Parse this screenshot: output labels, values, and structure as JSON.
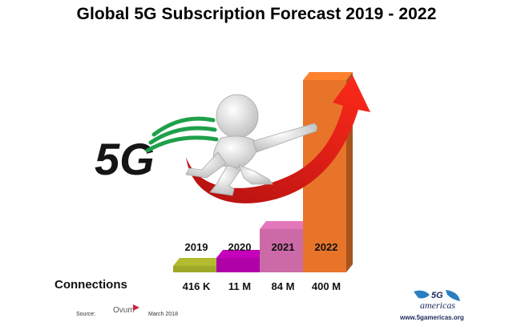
{
  "title": "Global 5G Subscription Forecast 2019 - 2022",
  "row_label": "Connections",
  "source": {
    "label": "Source:",
    "org": "Ovum",
    "date": "March 2018"
  },
  "logo": {
    "text": "5G americas",
    "url": "www.5gamericas.org"
  },
  "badge_text": "5G",
  "colors": {
    "y2019": "#a0a82a",
    "y2020": "#b000a8",
    "y2021": "#cc6aa8",
    "y2022": "#e8742a",
    "arrow": "#e02020"
  },
  "chart_data": {
    "type": "bar",
    "title": "Global 5G Subscription Forecast 2019 - 2022",
    "categories": [
      "2019",
      "2020",
      "2021",
      "2022"
    ],
    "values": [
      0.416,
      11,
      84,
      400
    ],
    "value_labels": [
      "416 K",
      "11 M",
      "84 M",
      "400 M"
    ],
    "unit": "M",
    "xlabel": "",
    "ylabel": ""
  }
}
